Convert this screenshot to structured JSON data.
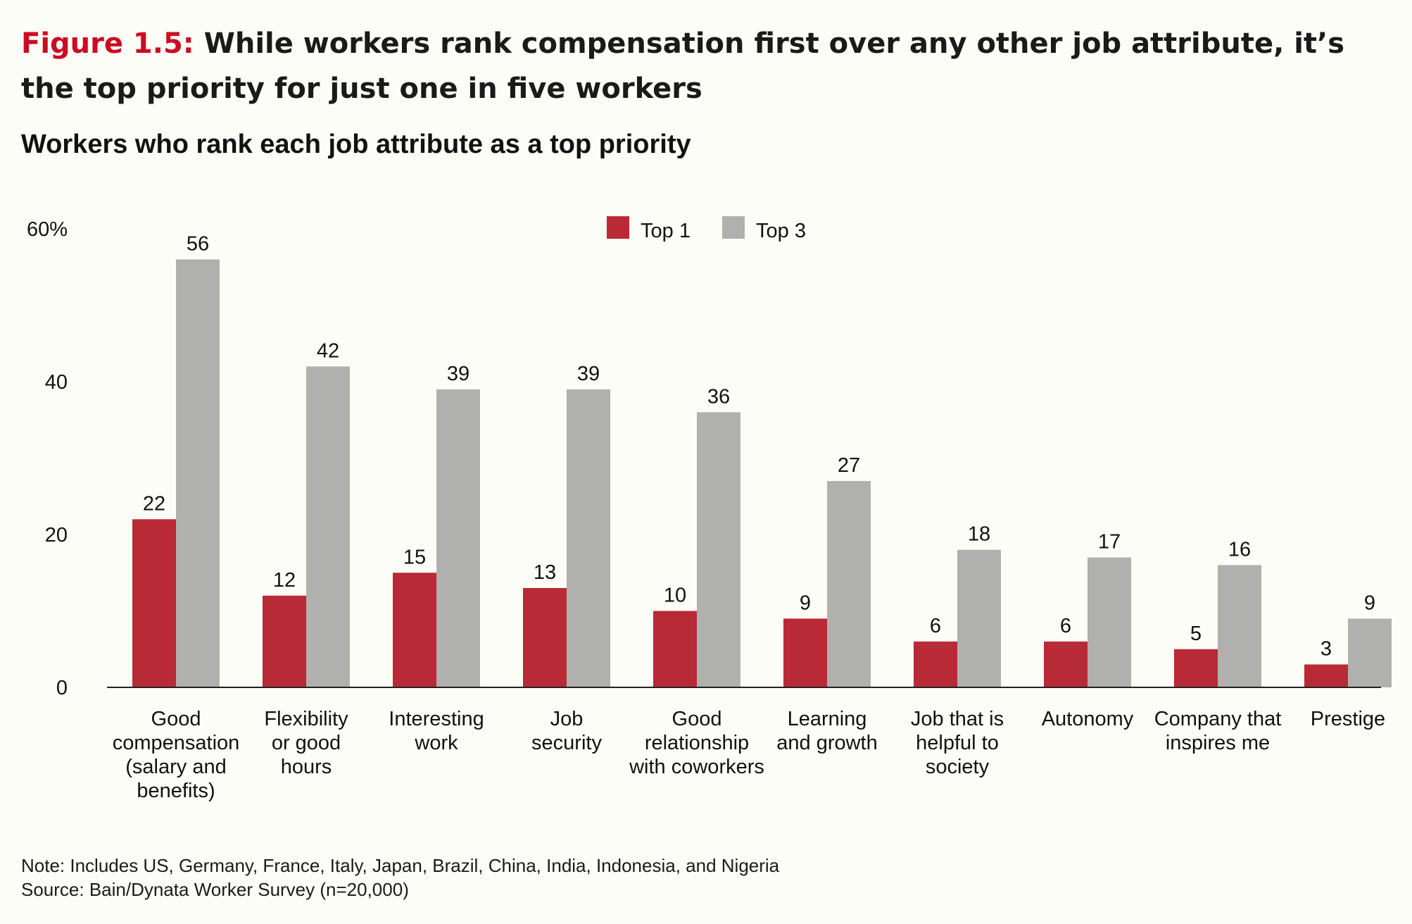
{
  "figure": {
    "label": "Figure 1.5:",
    "title": "While workers rank compensation first over any other job attribute, it’s the top priority for just one in five workers"
  },
  "chart_data": {
    "type": "bar",
    "title": "Workers who rank each job attribute as a top priority",
    "categories": [
      [
        "Good",
        "compensation",
        "(salary and",
        "benefits)"
      ],
      [
        "Flexibility",
        "or good",
        "hours"
      ],
      [
        "Interesting",
        "work"
      ],
      [
        "Job",
        "security"
      ],
      [
        "Good",
        "relationship",
        "with coworkers"
      ],
      [
        "Learning",
        "and growth"
      ],
      [
        "Job that is",
        "helpful to",
        "society"
      ],
      [
        "Autonomy"
      ],
      [
        "Company that",
        "inspires me"
      ],
      [
        "Prestige"
      ]
    ],
    "series": [
      {
        "name": "Top 1",
        "color": "#b82a35",
        "values": [
          22,
          12,
          15,
          13,
          10,
          9,
          6,
          6,
          5,
          3
        ]
      },
      {
        "name": "Top 3",
        "color": "#b0b0ae",
        "values": [
          56,
          42,
          39,
          39,
          36,
          27,
          18,
          17,
          16,
          9
        ]
      }
    ],
    "ylim": [
      0,
      60
    ],
    "yticks": [
      {
        "value": 0,
        "label": "0"
      },
      {
        "value": 20,
        "label": "20"
      },
      {
        "value": 40,
        "label": "40"
      },
      {
        "value": 60,
        "label": "60%"
      }
    ],
    "grid": false,
    "legend_position": "top-center"
  },
  "notes": {
    "note": "Note: Includes US, Germany, France, Italy, Japan, Brazil, China, India, Indonesia, and Nigeria",
    "source": "Source: Bain/Dynata Worker Survey (n=20,000)"
  }
}
